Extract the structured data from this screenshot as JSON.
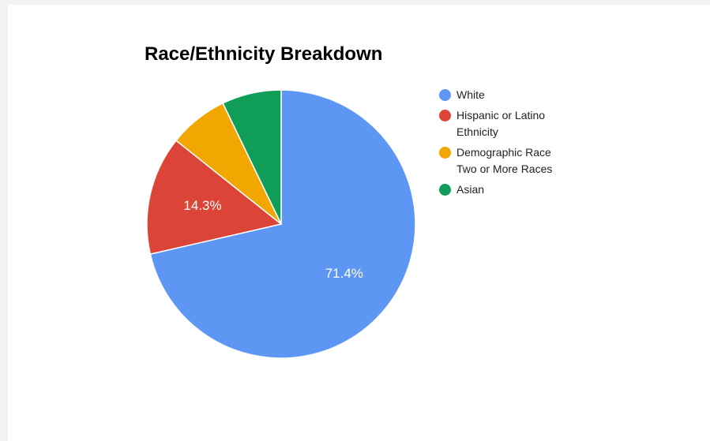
{
  "chart_data": {
    "type": "pie",
    "title": "Race/Ethnicity Breakdown",
    "categories": [
      "White",
      "Hispanic or Latino Ethnicity",
      "Demographic Race Two or More Races",
      "Asian"
    ],
    "values": [
      71.4,
      14.3,
      7.15,
      7.15
    ],
    "colors": [
      "#5e96f3",
      "#db4437",
      "#f2a600",
      "#0f9d58"
    ],
    "data_labels": [
      "71.4%",
      "14.3%",
      "",
      ""
    ],
    "legend_placement": "right",
    "legend": [
      {
        "lines": [
          "White"
        ],
        "color": "#5e96f3"
      },
      {
        "lines": [
          "Hispanic or Latino",
          "Ethnicity"
        ],
        "color": "#db4437"
      },
      {
        "lines": [
          "Demographic Race",
          "Two or More Races"
        ],
        "color": "#f2a600"
      },
      {
        "lines": [
          "Asian"
        ],
        "color": "#0f9d58"
      }
    ]
  }
}
